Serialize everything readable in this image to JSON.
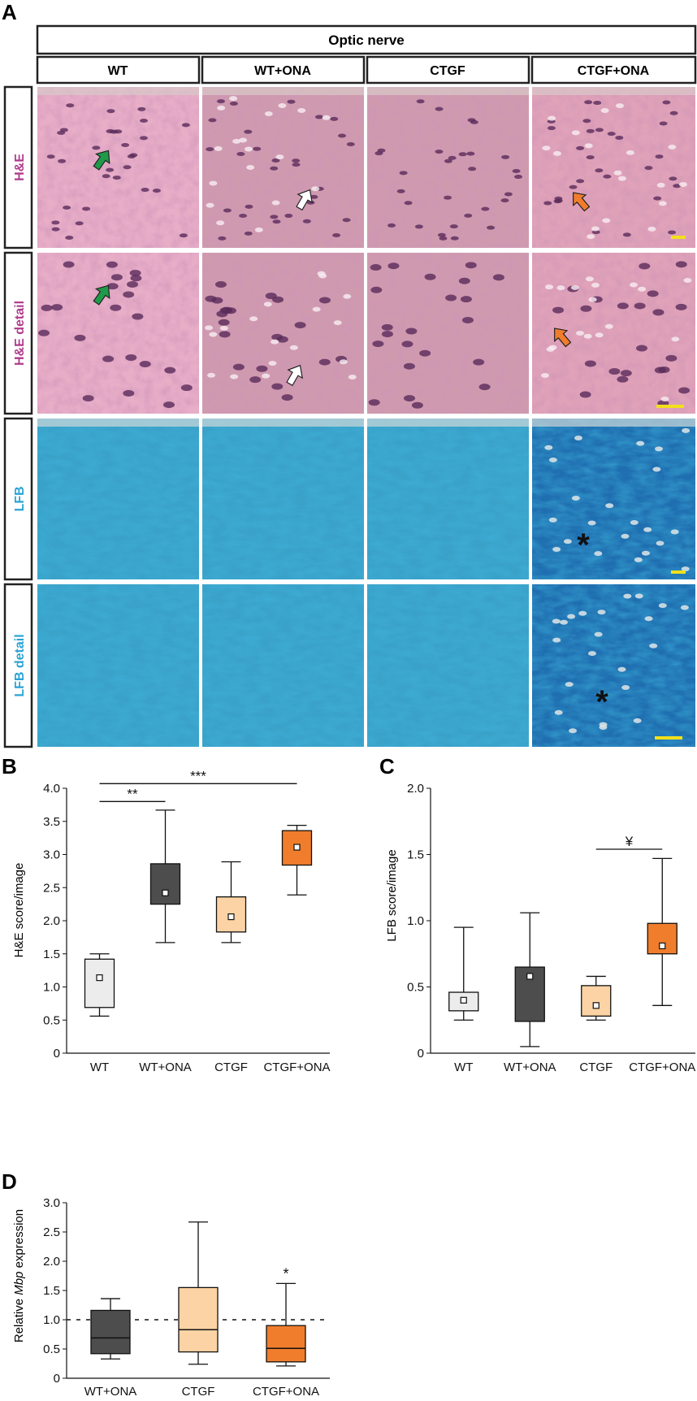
{
  "panel_A": {
    "label": "A",
    "header": "Optic nerve",
    "columns": [
      "WT",
      "WT+ONA",
      "CTGF",
      "CTGF+ONA"
    ],
    "rows": [
      {
        "label": "H&E",
        "color": "#b03a8c",
        "stain": "he"
      },
      {
        "label": "H&E detail",
        "color": "#b03a8c",
        "stain": "he"
      },
      {
        "label": "LFB",
        "color": "#29a3d6",
        "stain": "lfb"
      },
      {
        "label": "LFB detail",
        "color": "#29a3d6",
        "stain": "lfb"
      }
    ],
    "annotations": {
      "asterisk": "*",
      "arrow_colors": {
        "WT": "#1f9a4a",
        "WT+ONA": "#ffffff",
        "CTGF+ONA": "#f07d2c"
      },
      "scale_bar_color": "#f2e01a"
    }
  },
  "colors": {
    "WT": "#ececec",
    "WT+ONA": "#4d4d4d",
    "CTGF": "#fcd3a4",
    "CTGF+ONA": "#f07d2c"
  },
  "chart_data": [
    {
      "panel": "B",
      "type": "box",
      "ylabel": "H&E score/image",
      "ylim": [
        0,
        4.0
      ],
      "yticks": [
        "0",
        "0.5",
        "1.0",
        "1.5",
        "2.0",
        "2.5",
        "3.0",
        "3.5",
        "4.0"
      ],
      "categories": [
        "WT",
        "WT+ONA",
        "CTGF",
        "CTGF+ONA"
      ],
      "boxes": [
        {
          "whisker_low": 0.56,
          "q1": 0.69,
          "q3": 1.42,
          "whisker_high": 1.5,
          "mean": 1.14
        },
        {
          "whisker_low": 1.67,
          "q1": 2.25,
          "q3": 2.86,
          "whisker_high": 3.67,
          "mean": 2.42
        },
        {
          "whisker_low": 1.67,
          "q1": 1.83,
          "q3": 2.36,
          "whisker_high": 2.89,
          "mean": 2.06
        },
        {
          "whisker_low": 2.39,
          "q1": 2.84,
          "q3": 3.36,
          "whisker_high": 3.44,
          "mean": 3.11
        }
      ],
      "significance": [
        {
          "from": 0,
          "to": 1,
          "y": 3.8,
          "text": "**"
        },
        {
          "from": 0,
          "to": 3,
          "y": 4.07,
          "text": "***"
        }
      ]
    },
    {
      "panel": "C",
      "type": "box",
      "ylabel": "LFB score/image",
      "ylim": [
        0,
        2.0
      ],
      "yticks": [
        "0",
        "0.5",
        "1.0",
        "1.5",
        "2.0"
      ],
      "categories": [
        "WT",
        "WT+ONA",
        "CTGF",
        "CTGF+ONA"
      ],
      "boxes": [
        {
          "whisker_low": 0.25,
          "q1": 0.32,
          "q3": 0.46,
          "whisker_high": 0.95,
          "mean": 0.4
        },
        {
          "whisker_low": 0.05,
          "q1": 0.24,
          "q3": 0.65,
          "whisker_high": 1.06,
          "mean": 0.58
        },
        {
          "whisker_low": 0.25,
          "q1": 0.28,
          "q3": 0.51,
          "whisker_high": 0.58,
          "mean": 0.36
        },
        {
          "whisker_low": 0.36,
          "q1": 0.75,
          "q3": 0.98,
          "whisker_high": 1.47,
          "mean": 0.81
        }
      ],
      "significance": [
        {
          "from": 2,
          "to": 3,
          "y": 1.54,
          "text": "¥"
        }
      ]
    },
    {
      "panel": "D",
      "type": "box",
      "ylabel_prefix": "Relative ",
      "ylabel_italic": "Mbp",
      "ylabel_suffix": " expression",
      "ylim": [
        0,
        3.0
      ],
      "yticks": [
        "0",
        "0.5",
        "1.0",
        "1.5",
        "2.0",
        "2.5",
        "3.0"
      ],
      "categories": [
        "WT+ONA",
        "CTGF",
        "CTGF+ONA"
      ],
      "reference_line": 1.0,
      "boxes": [
        {
          "whisker_low": 0.33,
          "q1": 0.42,
          "median": 0.69,
          "q3": 1.16,
          "whisker_high": 1.36
        },
        {
          "whisker_low": 0.24,
          "q1": 0.45,
          "median": 0.83,
          "q3": 1.55,
          "whisker_high": 2.67
        },
        {
          "whisker_low": 0.21,
          "q1": 0.28,
          "median": 0.51,
          "q3": 0.9,
          "whisker_high": 1.62,
          "star": "*"
        }
      ]
    }
  ]
}
